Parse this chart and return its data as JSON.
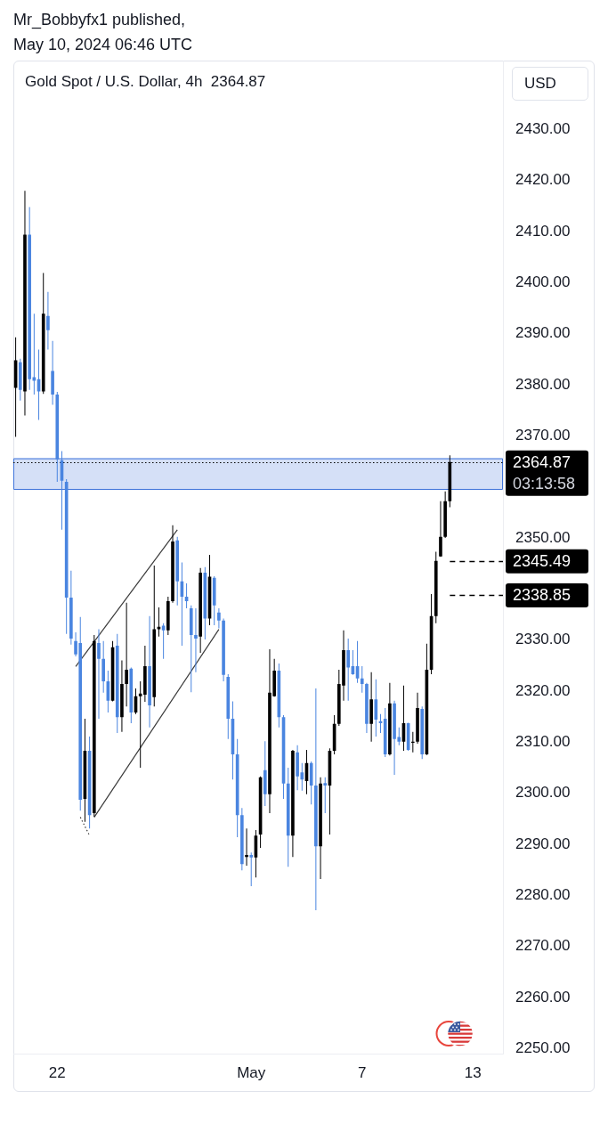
{
  "chart_data": {
    "type": "candlestick",
    "title": "Gold Spot / U.S. Dollar, 4h  2364.87",
    "ylabel": "USD",
    "annotations": [
      "Mr_Bobbyfx1 published,",
      "May 10, 2024 06:46 UTC"
    ],
    "categories": [
      null,
      null,
      null,
      null,
      null,
      null,
      null,
      null,
      null,
      "22",
      null,
      null,
      null,
      null,
      null,
      null,
      null,
      null,
      null,
      null,
      null,
      null,
      null,
      null,
      null,
      null,
      null,
      null,
      null,
      null,
      null,
      null,
      null,
      null,
      null,
      null,
      null,
      null,
      null,
      null,
      null,
      null,
      null,
      null,
      null,
      null,
      null,
      null,
      null,
      null,
      null,
      "May",
      null,
      null,
      null,
      null,
      null,
      null,
      null,
      null,
      null,
      null,
      null,
      null,
      null,
      null,
      null,
      null,
      null,
      null,
      null,
      null,
      null,
      null,
      null,
      "7",
      null,
      null,
      null,
      null,
      null,
      null,
      null,
      null,
      null,
      null,
      null,
      null,
      null,
      null,
      null,
      null,
      null,
      null,
      null,
      null,
      null,
      null,
      null,
      "13",
      null,
      null,
      null,
      null,
      null,
      null
    ],
    "ohlc": [
      [
        2379.4,
        2389.3,
        2369.8,
        2384.8
      ],
      [
        2384.4,
        2385.1,
        2376.9,
        2379.0
      ],
      [
        2378.7,
        2418.0,
        2374.0,
        2409.4
      ],
      [
        2409.4,
        2414.8,
        2379.0,
        2381.1
      ],
      [
        2381.5,
        2393.9,
        2378.1,
        2380.8
      ],
      [
        2381.1,
        2386.9,
        2373.1,
        2378.7
      ],
      [
        2378.7,
        2401.9,
        2378.2,
        2393.9
      ],
      [
        2393.5,
        2398.2,
        2386.9,
        2390.7
      ],
      [
        2382.7,
        2388.6,
        2376.1,
        2378.1
      ],
      [
        2378.1,
        2378.6,
        2361.0,
        2365.4
      ],
      [
        2365.2,
        2367.0,
        2351.6,
        2361.2
      ],
      [
        2361.0,
        2361.5,
        2331.2,
        2338.3
      ],
      [
        2338.3,
        2343.6,
        2329.1,
        2330.3
      ],
      [
        2329.8,
        2331.5,
        2326.8,
        2327.2
      ],
      [
        2329.4,
        2334.5,
        2296.6,
        2298.7
      ],
      [
        2298.9,
        2314.6,
        2294.4,
        2308.3
      ],
      [
        2308.3,
        2311.1,
        2293.1,
        2295.7
      ],
      [
        2296.1,
        2331.0,
        2295.4,
        2329.8
      ],
      [
        2329.4,
        2332.1,
        2314.6,
        2326.3
      ],
      [
        2326.3,
        2329.8,
        2319.7,
        2321.9
      ],
      [
        2321.9,
        2324.0,
        2315.8,
        2318.1
      ],
      [
        2318.1,
        2329.8,
        2318.0,
        2328.6
      ],
      [
        2328.9,
        2331.2,
        2311.8,
        2314.9
      ],
      [
        2314.9,
        2326.0,
        2312.0,
        2321.4
      ],
      [
        2321.4,
        2337.3,
        2317.0,
        2324.2
      ],
      [
        2324.4,
        2324.6,
        2313.7,
        2315.8
      ],
      [
        2315.8,
        2320.5,
        2315.5,
        2319.0
      ],
      [
        2319.0,
        2321.9,
        2305.0,
        2319.5
      ],
      [
        2319.3,
        2328.9,
        2317.9,
        2324.9
      ],
      [
        2324.9,
        2334.7,
        2312.9,
        2317.2
      ],
      [
        2318.8,
        2344.6,
        2317.0,
        2332.1
      ],
      [
        2332.1,
        2336.4,
        2330.7,
        2332.6
      ],
      [
        2332.8,
        2333.3,
        2326.3,
        2331.9
      ],
      [
        2331.9,
        2338.5,
        2331.0,
        2337.6
      ],
      [
        2337.6,
        2352.5,
        2337.3,
        2349.3
      ],
      [
        2349.5,
        2350.2,
        2336.8,
        2341.5
      ],
      [
        2341.5,
        2345.2,
        2328.9,
        2338.5
      ],
      [
        2338.5,
        2341.1,
        2336.2,
        2337.6
      ],
      [
        2336.2,
        2336.8,
        2319.8,
        2331.0
      ],
      [
        2331.0,
        2336.2,
        2323.7,
        2330.3
      ],
      [
        2330.7,
        2344.1,
        2327.5,
        2343.2
      ],
      [
        2343.2,
        2344.3,
        2330.1,
        2334.2
      ],
      [
        2334.2,
        2346.7,
        2332.9,
        2342.4
      ],
      [
        2342.2,
        2342.5,
        2332.9,
        2336.8
      ],
      [
        2335.4,
        2336.2,
        2332.3,
        2333.8
      ],
      [
        2333.8,
        2334.2,
        2321.9,
        2323.2
      ],
      [
        2322.8,
        2323.3,
        2310.6,
        2314.6
      ],
      [
        2314.6,
        2318.0,
        2302.7,
        2307.6
      ],
      [
        2307.6,
        2310.6,
        2291.4,
        2295.7
      ],
      [
        2295.7,
        2297.1,
        2284.9,
        2286.1
      ],
      [
        2287.5,
        2293.1,
        2285.8,
        2287.9
      ],
      [
        2287.9,
        2288.4,
        2281.8,
        2287.4
      ],
      [
        2287.4,
        2292.8,
        2283.5,
        2291.7
      ],
      [
        2291.9,
        2303.3,
        2289.3,
        2303.1
      ],
      [
        2304.5,
        2310.2,
        2297.5,
        2299.8
      ],
      [
        2299.8,
        2328.2,
        2296.1,
        2319.7
      ],
      [
        2319.0,
        2326.3,
        2318.9,
        2324.0
      ],
      [
        2324.0,
        2325.4,
        2312.9,
        2314.9
      ],
      [
        2314.9,
        2315.3,
        2298.9,
        2301.9
      ],
      [
        2301.9,
        2305.0,
        2285.6,
        2291.7
      ],
      [
        2291.7,
        2308.5,
        2287.5,
        2308.3
      ],
      [
        2308.0,
        2309.4,
        2300.6,
        2303.3
      ],
      [
        2304.1,
        2305.9,
        2300.5,
        2302.7
      ],
      [
        2302.4,
        2308.5,
        2299.8,
        2305.9
      ],
      [
        2305.9,
        2306.2,
        2297.8,
        2301.5
      ],
      [
        2301.5,
        2320.5,
        2277.1,
        2289.6
      ],
      [
        2289.6,
        2303.1,
        2283.2,
        2301.9
      ],
      [
        2302.0,
        2303.1,
        2296.1,
        2301.5
      ],
      [
        2301.5,
        2308.8,
        2291.9,
        2308.3
      ],
      [
        2308.3,
        2315.3,
        2307.6,
        2313.6
      ],
      [
        2313.6,
        2324.2,
        2313.2,
        2321.4
      ],
      [
        2321.1,
        2331.9,
        2318.1,
        2328.0
      ],
      [
        2328.0,
        2330.3,
        2318.1,
        2324.6
      ],
      [
        2324.9,
        2328.0,
        2323.2,
        2323.3
      ],
      [
        2324.9,
        2329.8,
        2321.6,
        2322.5
      ],
      [
        2322.5,
        2324.9,
        2319.7,
        2321.4
      ],
      [
        2321.4,
        2321.6,
        2311.8,
        2313.6
      ],
      [
        2313.6,
        2323.7,
        2310.1,
        2318.4
      ],
      [
        2318.4,
        2322.3,
        2311.1,
        2314.4
      ],
      [
        2314.1,
        2315.5,
        2311.8,
        2313.7
      ],
      [
        2314.6,
        2316.7,
        2307.1,
        2307.6
      ],
      [
        2307.6,
        2321.6,
        2307.4,
        2317.6
      ],
      [
        2317.6,
        2318.1,
        2303.6,
        2310.6
      ],
      [
        2311.0,
        2312.9,
        2309.4,
        2310.1
      ],
      [
        2310.1,
        2321.1,
        2308.3,
        2313.7
      ],
      [
        2313.7,
        2313.8,
        2308.3,
        2308.5
      ],
      [
        2309.9,
        2312.0,
        2308.0,
        2310.1
      ],
      [
        2310.1,
        2319.7,
        2309.7,
        2316.7
      ],
      [
        2316.5,
        2317.0,
        2306.7,
        2307.6
      ],
      [
        2307.6,
        2329.3,
        2307.5,
        2324.2
      ],
      [
        2324.2,
        2339.0,
        2323.3,
        2334.7
      ],
      [
        2334.7,
        2347.3,
        2333.3,
        2345.5
      ],
      [
        2346.4,
        2357.2,
        2346.3,
        2350.2
      ],
      [
        2350.2,
        2359.1,
        2350.0,
        2357.2
      ],
      [
        2357.2,
        2366.2,
        2356.0,
        2364.87
      ],
      null,
      null,
      null,
      null,
      null,
      null,
      null,
      null,
      null,
      null,
      null
    ],
    "colors": [
      "#000000",
      "#4a85e0",
      "#000000",
      "#4a85e0",
      "#4a85e0",
      "#4a85e0",
      "#000000",
      "#4a85e0",
      "#4a85e0",
      "#4a85e0",
      "#4a85e0",
      "#4a85e0",
      "#4a85e0",
      "#4a85e0",
      "#4a85e0",
      "#000000",
      "#4a85e0",
      "#000000",
      "#4a85e0",
      "#4a85e0",
      "#4a85e0",
      "#000000",
      "#4a85e0",
      "#000000",
      "#000000",
      "#4a85e0",
      "#000000",
      "#000000",
      "#000000",
      "#4a85e0",
      "#000000",
      "#000000",
      "#4a85e0",
      "#000000",
      "#000000",
      "#4a85e0",
      "#4a85e0",
      "#4a85e0",
      "#4a85e0",
      "#4a85e0",
      "#000000",
      "#4a85e0",
      "#000000",
      "#4a85e0",
      "#4a85e0",
      "#4a85e0",
      "#4a85e0",
      "#4a85e0",
      "#4a85e0",
      "#4a85e0",
      "#000000",
      "#4a85e0",
      "#000000",
      "#000000",
      "#4a85e0",
      "#000000",
      "#000000",
      "#4a85e0",
      "#4a85e0",
      "#4a85e0",
      "#000000",
      "#4a85e0",
      "#4a85e0",
      "#000000",
      "#4a85e0",
      "#4a85e0",
      "#000000",
      "#4a85e0",
      "#000000",
      "#000000",
      "#000000",
      "#000000",
      "#4a85e0",
      "#4a85e0",
      "#4a85e0",
      "#4a85e0",
      "#4a85e0",
      "#000000",
      "#4a85e0",
      "#4a85e0",
      "#4a85e0",
      "#000000",
      "#4a85e0",
      "#4a85e0",
      "#000000",
      "#4a85e0",
      "#000000",
      "#000000",
      "#4a85e0",
      "#000000",
      "#000000",
      "#000000",
      "#000000",
      "#000000",
      "#000000",
      null,
      null,
      null,
      null,
      null,
      null,
      null,
      null,
      null,
      null,
      null
    ],
    "series": [
      {
        "type": "line",
        "color": "#3a3a3a",
        "values": [
          null,
          null,
          null,
          null,
          null,
          null,
          null,
          null,
          null,
          null,
          null,
          null,
          null,
          2324.8,
          null,
          null,
          null,
          null,
          null,
          null,
          null,
          null,
          null,
          null,
          null,
          null,
          null,
          null,
          null,
          null,
          null,
          null,
          null,
          null,
          null,
          2351.6,
          null,
          null,
          null,
          null,
          null,
          null,
          null,
          null,
          null,
          null,
          null,
          null,
          null,
          null,
          null,
          null,
          null,
          null,
          null,
          null,
          null,
          null,
          null,
          null,
          null,
          null,
          null,
          null,
          null,
          null,
          null,
          null,
          null,
          null,
          null,
          null,
          null,
          null,
          null,
          null,
          null,
          null,
          null,
          null,
          null,
          null,
          null,
          null,
          null,
          null,
          null,
          null,
          null,
          null,
          null,
          null,
          null,
          null,
          null,
          null,
          null,
          null,
          null,
          null,
          null,
          null,
          null,
          null,
          null,
          null
        ]
      },
      {
        "type": "line",
        "color": "#3a3a3a",
        "values": [
          null,
          null,
          null,
          null,
          null,
          null,
          null,
          null,
          null,
          null,
          null,
          null,
          null,
          null,
          null,
          null,
          null,
          2295.3,
          null,
          null,
          null,
          null,
          null,
          null,
          null,
          null,
          null,
          null,
          null,
          null,
          null,
          null,
          null,
          null,
          null,
          null,
          null,
          null,
          null,
          null,
          null,
          null,
          null,
          null,
          2332.1,
          null,
          null,
          null,
          null,
          null,
          null,
          null,
          null,
          null,
          null,
          null,
          null,
          null,
          null,
          null,
          null,
          null,
          null,
          null,
          null,
          null,
          null,
          null,
          null,
          null,
          null,
          null,
          null,
          null,
          null,
          null,
          null,
          null,
          null,
          null,
          null,
          null,
          null,
          null,
          null,
          null,
          null,
          null,
          null,
          null,
          null,
          null,
          null,
          null,
          null,
          null,
          null,
          null,
          null,
          null,
          null,
          null,
          null,
          null,
          null,
          null
        ]
      },
      {
        "type": "line",
        "color": "#3a3a3a",
        "line_style": "dotted",
        "values": [
          null,
          null,
          null,
          null,
          null,
          null,
          null,
          null,
          null,
          null,
          null,
          null,
          null,
          null,
          2295.3,
          null,
          2291.7,
          null,
          null,
          null,
          null,
          null,
          null,
          null,
          null,
          null,
          null,
          null,
          null,
          null,
          null,
          null,
          null,
          null,
          null,
          null,
          null,
          null,
          null,
          null,
          null,
          null,
          null,
          null,
          null,
          null,
          null,
          null,
          null,
          null,
          null,
          null,
          null,
          null,
          null,
          null,
          null,
          null,
          null,
          null,
          null,
          null,
          null,
          null,
          null,
          null,
          null,
          null,
          null,
          null,
          null,
          null,
          null,
          null,
          null,
          null,
          null,
          null,
          null,
          null,
          null,
          null,
          null,
          null,
          null,
          null,
          null,
          null,
          null,
          null,
          null,
          null,
          null,
          null,
          null,
          null,
          null,
          null,
          null,
          null,
          null,
          null,
          null,
          null,
          null,
          null
        ]
      }
    ],
    "ylim": [
      2249,
      2443.5
    ],
    "yticks": [
      {
        "value": 2250,
        "label": "2250.00"
      },
      {
        "value": 2260,
        "label": "2260.00"
      },
      {
        "value": 2270,
        "label": "2270.00"
      },
      {
        "value": 2280,
        "label": "2280.00"
      },
      {
        "value": 2290,
        "label": "2290.00"
      },
      {
        "value": 2300,
        "label": "2300.00"
      },
      {
        "value": 2310,
        "label": "2310.00"
      },
      {
        "value": 2320,
        "label": "2320.00"
      },
      {
        "value": 2330,
        "label": "2330.00"
      },
      {
        "value": 2350,
        "label": "2350.00"
      },
      {
        "value": 2370,
        "label": "2370.00"
      },
      {
        "value": 2380,
        "label": "2380.00"
      },
      {
        "value": 2390,
        "label": "2390.00"
      },
      {
        "value": 2400,
        "label": "2400.00"
      },
      {
        "value": 2410,
        "label": "2410.00"
      },
      {
        "value": 2420,
        "label": "2420.00"
      },
      {
        "value": 2430,
        "label": "2430.00"
      }
    ],
    "bands": [
      {
        "axis": "y",
        "from": 2359.6,
        "to": 2365.6,
        "color": "#3f74da"
      }
    ],
    "ref_lines": [
      {
        "axis": "y",
        "value": 2364.87,
        "label": "2364.87\n03:13:58",
        "line_style": "dotted",
        "color": "#000000"
      },
      {
        "axis": "y",
        "value": 2345.49,
        "label": "2345.49",
        "line_style": "dashed",
        "color": "#000000"
      },
      {
        "axis": "y",
        "value": 2338.85,
        "label": "2338.85",
        "line_style": "dashed",
        "color": "#000000"
      }
    ]
  }
}
